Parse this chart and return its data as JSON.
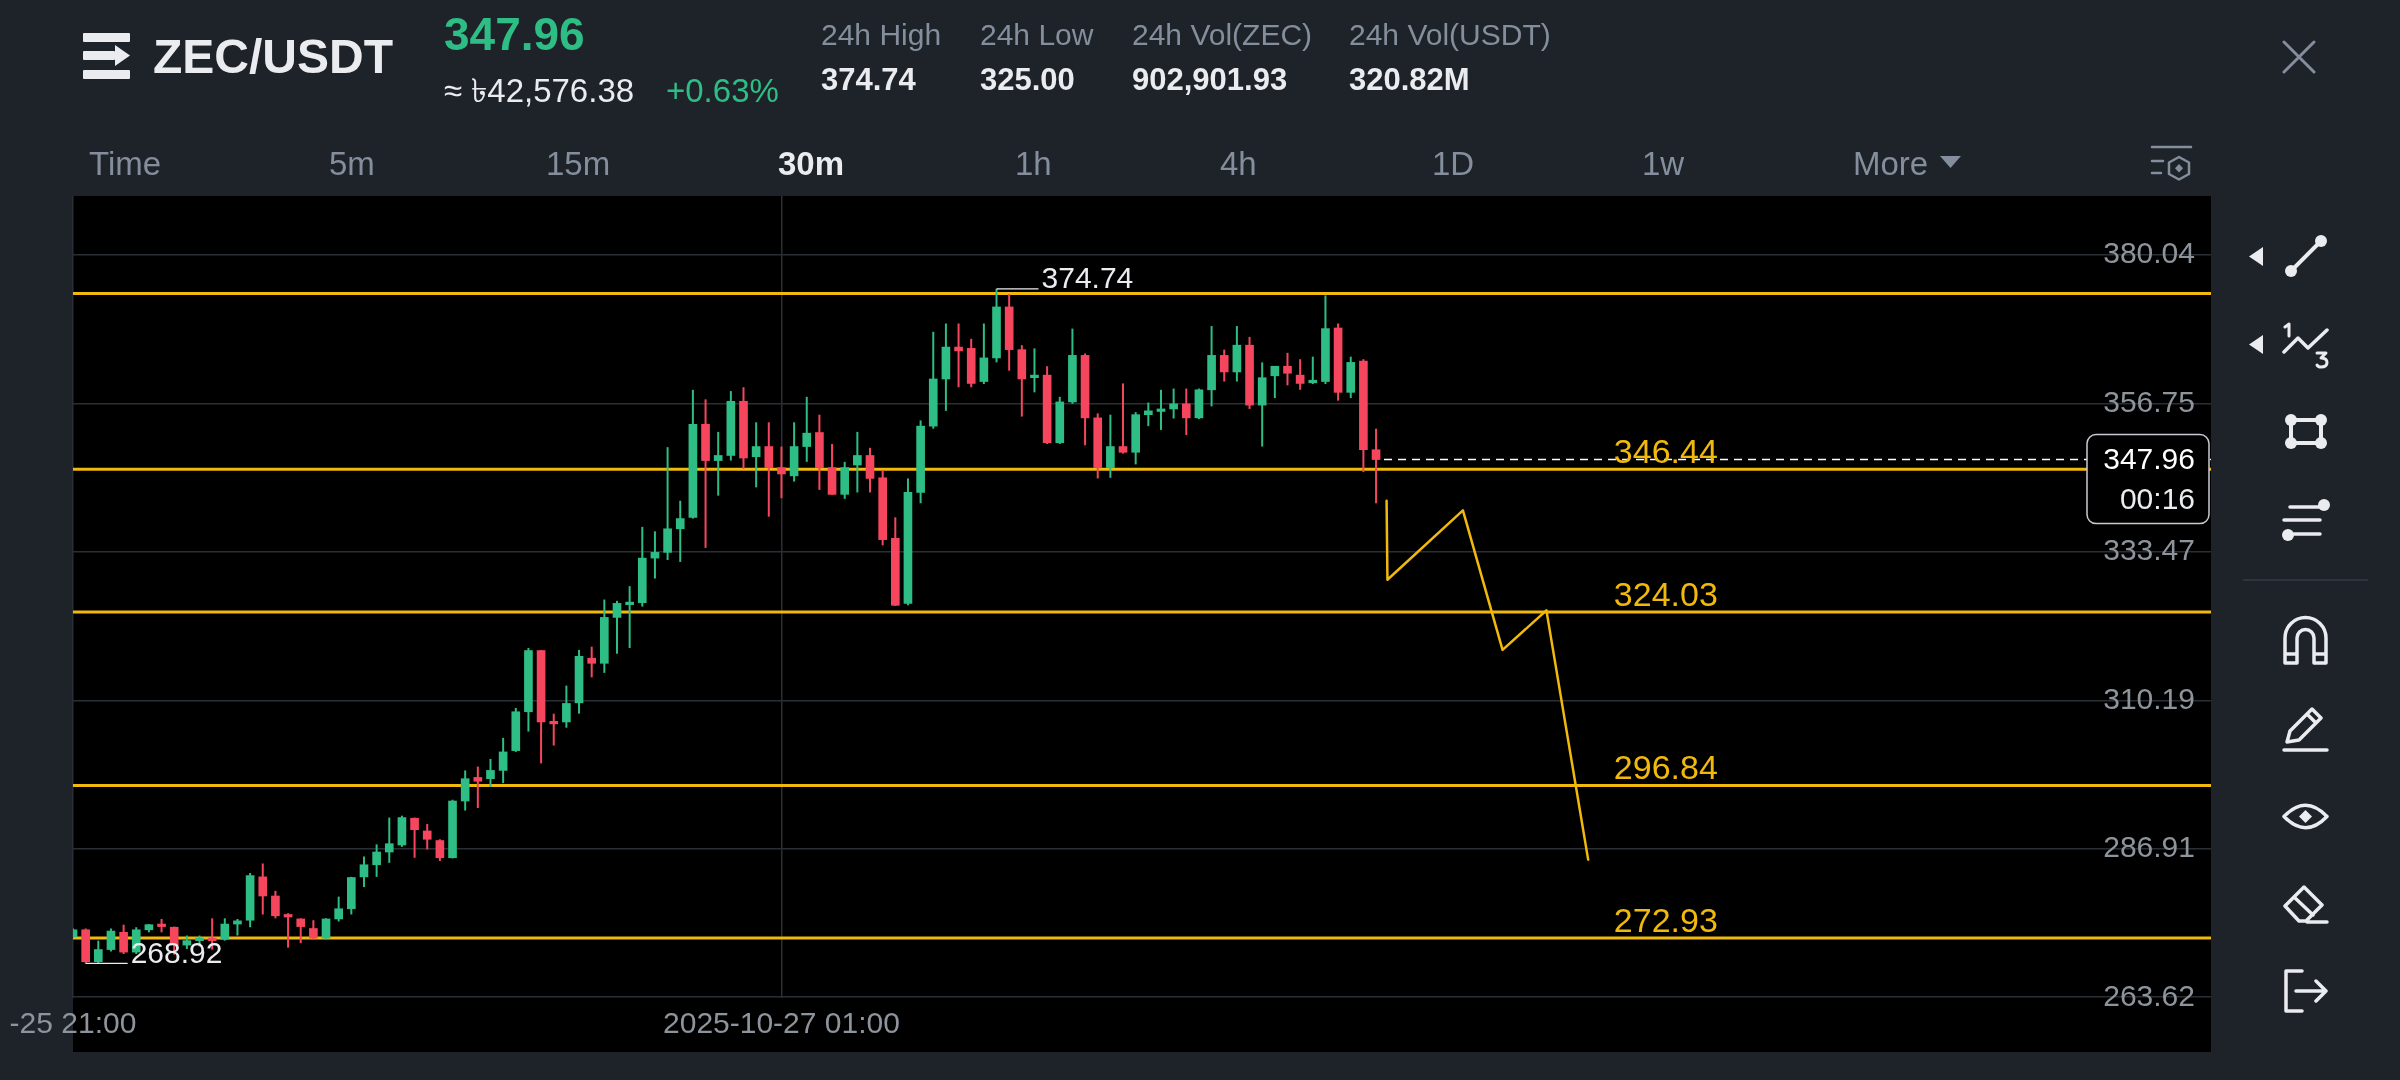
{
  "chart_data": {
    "type": "candlestick",
    "title": "ZEC/USDT",
    "x": [
      "2025-10-25T21:00",
      "2025-10-25T21:30",
      "2025-10-25T22:00",
      "2025-10-25T22:30",
      "2025-10-25T23:00",
      "2025-10-25T23:30",
      "2025-10-26T00:00",
      "2025-10-26T00:30",
      "2025-10-26T01:00",
      "2025-10-26T01:30",
      "2025-10-26T02:00",
      "2025-10-26T02:30",
      "2025-10-26T03:00",
      "2025-10-26T03:30",
      "2025-10-26T04:00",
      "2025-10-26T04:30",
      "2025-10-26T05:00",
      "2025-10-26T05:30",
      "2025-10-26T06:00",
      "2025-10-26T06:30",
      "2025-10-26T07:00",
      "2025-10-26T07:30",
      "2025-10-26T08:00",
      "2025-10-26T08:30",
      "2025-10-26T09:00",
      "2025-10-26T09:30",
      "2025-10-26T10:00",
      "2025-10-26T10:30",
      "2025-10-26T11:00",
      "2025-10-26T11:30",
      "2025-10-26T12:00",
      "2025-10-26T12:30",
      "2025-10-26T13:00",
      "2025-10-26T13:30",
      "2025-10-26T14:00",
      "2025-10-26T14:30",
      "2025-10-26T15:00",
      "2025-10-26T15:30",
      "2025-10-26T16:00",
      "2025-10-26T16:30",
      "2025-10-26T17:00",
      "2025-10-26T17:30",
      "2025-10-26T18:00",
      "2025-10-26T18:30",
      "2025-10-26T19:00",
      "2025-10-26T19:30",
      "2025-10-26T20:00",
      "2025-10-26T20:30",
      "2025-10-26T21:00",
      "2025-10-26T21:30",
      "2025-10-26T22:00",
      "2025-10-26T22:30",
      "2025-10-26T23:00",
      "2025-10-26T23:30",
      "2025-10-27T00:00",
      "2025-10-27T00:30",
      "2025-10-27T01:00",
      "2025-10-27T01:30",
      "2025-10-27T02:00",
      "2025-10-27T02:30",
      "2025-10-27T03:00",
      "2025-10-27T03:30",
      "2025-10-27T04:00",
      "2025-10-27T04:30",
      "2025-10-27T05:00",
      "2025-10-27T05:30",
      "2025-10-27T06:00",
      "2025-10-27T06:30",
      "2025-10-27T07:00",
      "2025-10-27T07:30",
      "2025-10-27T08:00",
      "2025-10-27T08:30",
      "2025-10-27T09:00",
      "2025-10-27T09:30",
      "2025-10-27T10:00",
      "2025-10-27T10:30",
      "2025-10-27T11:00",
      "2025-10-27T11:30",
      "2025-10-27T12:00",
      "2025-10-27T12:30",
      "2025-10-27T13:00",
      "2025-10-27T13:30",
      "2025-10-27T14:00",
      "2025-10-27T14:30",
      "2025-10-27T15:00",
      "2025-10-27T15:30",
      "2025-10-27T16:00",
      "2025-10-27T16:30",
      "2025-10-27T17:00",
      "2025-10-27T17:30",
      "2025-10-27T18:00",
      "2025-10-27T18:30",
      "2025-10-27T19:00",
      "2025-10-27T19:30",
      "2025-10-27T20:00",
      "2025-10-27T20:30",
      "2025-10-27T21:00",
      "2025-10-27T21:30",
      "2025-10-27T22:00",
      "2025-10-27T22:30",
      "2025-10-27T23:00",
      "2025-10-27T23:30",
      "2025-10-28T00:00",
      "2025-10-28T00:30"
    ],
    "ohlc": [
      [
        273.1,
        274.4,
        272.9,
        274.2
      ],
      [
        274.2,
        274.4,
        268.92,
        269.2
      ],
      [
        269.2,
        272.5,
        269.0,
        271.1
      ],
      [
        271.1,
        274.4,
        270.8,
        274.0
      ],
      [
        273.8,
        275.0,
        270.4,
        270.7
      ],
      [
        270.7,
        274.6,
        270.4,
        274.2
      ],
      [
        274.2,
        275.1,
        273.8,
        275.0
      ],
      [
        275.1,
        275.9,
        273.8,
        274.7
      ],
      [
        274.6,
        274.7,
        270.3,
        271.8
      ],
      [
        271.8,
        273.3,
        271.2,
        272.5
      ],
      [
        272.5,
        273.3,
        271.6,
        272.9
      ],
      [
        272.9,
        276.0,
        271.1,
        272.5
      ],
      [
        272.7,
        276.0,
        272.5,
        275.1
      ],
      [
        275.1,
        275.9,
        273.3,
        275.6
      ],
      [
        275.7,
        283.1,
        274.6,
        282.7
      ],
      [
        282.5,
        284.6,
        276.6,
        279.5
      ],
      [
        279.5,
        280.3,
        276.0,
        276.4
      ],
      [
        276.6,
        276.8,
        271.4,
        276.2
      ],
      [
        275.9,
        276.0,
        272.1,
        274.7
      ],
      [
        274.4,
        275.7,
        272.7,
        272.9
      ],
      [
        272.9,
        276.0,
        272.7,
        275.9
      ],
      [
        275.9,
        279.4,
        275.5,
        277.5
      ],
      [
        277.5,
        282.5,
        276.6,
        282.4
      ],
      [
        282.5,
        285.7,
        280.9,
        284.4
      ],
      [
        284.4,
        287.6,
        282.5,
        286.4
      ],
      [
        286.4,
        291.8,
        284.7,
        287.7
      ],
      [
        287.5,
        292.1,
        287.2,
        291.8
      ],
      [
        291.7,
        291.8,
        285.5,
        289.9
      ],
      [
        289.7,
        290.8,
        286.8,
        288.4
      ],
      [
        288.2,
        288.4,
        285.0,
        285.5
      ],
      [
        285.5,
        294.6,
        285.4,
        294.4
      ],
      [
        294.4,
        299.2,
        292.9,
        297.9
      ],
      [
        298.1,
        299.8,
        293.3,
        297.5
      ],
      [
        297.9,
        301.0,
        296.6,
        299.2
      ],
      [
        299.2,
        304.3,
        297.2,
        302.1
      ],
      [
        302.3,
        309.0,
        302.1,
        308.4
      ],
      [
        308.4,
        318.4,
        305.3,
        318.0
      ],
      [
        318.0,
        318.1,
        300.3,
        306.8
      ],
      [
        306.9,
        308.1,
        303.1,
        306.5
      ],
      [
        306.8,
        312.5,
        305.9,
        309.7
      ],
      [
        309.8,
        318.1,
        308.1,
        317.1
      ],
      [
        316.8,
        318.6,
        313.8,
        316.0
      ],
      [
        316.0,
        326.0,
        314.5,
        323.2
      ],
      [
        323.2,
        325.8,
        317.5,
        325.4
      ],
      [
        325.2,
        328.1,
        318.4,
        325.6
      ],
      [
        325.5,
        337.4,
        324.9,
        332.5
      ],
      [
        332.5,
        336.7,
        329.3,
        333.4
      ],
      [
        333.4,
        349.9,
        332.2,
        337.1
      ],
      [
        337.1,
        341.5,
        331.9,
        338.7
      ],
      [
        338.9,
        358.9,
        338.7,
        353.5
      ],
      [
        353.5,
        357.4,
        334.1,
        347.8
      ],
      [
        347.8,
        352.3,
        342.3,
        348.6
      ],
      [
        348.6,
        358.7,
        347.8,
        357.1
      ],
      [
        357.1,
        359.3,
        346.5,
        348.2
      ],
      [
        348.4,
        353.8,
        343.6,
        350.0
      ],
      [
        350.0,
        353.8,
        339.0,
        346.7
      ],
      [
        346.7,
        350.0,
        341.9,
        345.7
      ],
      [
        345.4,
        353.8,
        344.5,
        350.0
      ],
      [
        350.0,
        357.8,
        347.6,
        352.1
      ],
      [
        352.2,
        355.0,
        343.2,
        346.7
      ],
      [
        346.7,
        350.4,
        342.4,
        342.5
      ],
      [
        342.5,
        347.6,
        341.8,
        346.7
      ],
      [
        347.1,
        352.3,
        342.8,
        348.6
      ],
      [
        348.6,
        349.8,
        342.8,
        345.0
      ],
      [
        345.1,
        346.3,
        334.5,
        335.4
      ],
      [
        335.6,
        338.9,
        325.0,
        325.1
      ],
      [
        325.4,
        345.0,
        325.1,
        342.8
      ],
      [
        342.8,
        354.1,
        341.1,
        353.2
      ],
      [
        353.2,
        368.0,
        352.8,
        360.6
      ],
      [
        360.6,
        369.3,
        355.6,
        365.6
      ],
      [
        365.6,
        369.3,
        359.3,
        365.0
      ],
      [
        365.4,
        366.9,
        359.3,
        359.9
      ],
      [
        360.2,
        369.3,
        359.8,
        363.9
      ],
      [
        363.9,
        374.74,
        363.2,
        371.9
      ],
      [
        371.9,
        373.9,
        361.9,
        365.2
      ],
      [
        365.2,
        365.9,
        354.7,
        360.6
      ],
      [
        360.8,
        365.4,
        358.5,
        361.2
      ],
      [
        361.2,
        362.6,
        350.4,
        350.6
      ],
      [
        350.6,
        357.8,
        350.4,
        357.0
      ],
      [
        357.0,
        368.5,
        356.7,
        364.3
      ],
      [
        364.3,
        364.6,
        350.2,
        354.5
      ],
      [
        354.5,
        355.2,
        345.0,
        346.7
      ],
      [
        346.7,
        355.0,
        345.1,
        350.0
      ],
      [
        350.0,
        359.9,
        348.9,
        349.1
      ],
      [
        349.1,
        355.4,
        347.2,
        355.0
      ],
      [
        355.0,
        356.9,
        353.2,
        355.6
      ],
      [
        355.5,
        358.9,
        352.6,
        355.9
      ],
      [
        355.9,
        359.1,
        354.4,
        356.7
      ],
      [
        356.7,
        359.1,
        351.8,
        354.5
      ],
      [
        354.5,
        359.1,
        354.3,
        358.9
      ],
      [
        358.9,
        368.9,
        356.3,
        364.3
      ],
      [
        364.3,
        365.2,
        360.2,
        361.7
      ],
      [
        361.7,
        368.9,
        360.2,
        365.9
      ],
      [
        365.9,
        367.2,
        355.9,
        356.5
      ],
      [
        356.5,
        363.2,
        350.0,
        360.8
      ],
      [
        361.1,
        362.6,
        357.6,
        362.6
      ],
      [
        362.6,
        364.7,
        359.6,
        361.5
      ],
      [
        361.2,
        363.7,
        358.9,
        359.9
      ],
      [
        360.0,
        364.1,
        359.8,
        360.4
      ],
      [
        360.2,
        373.7,
        359.8,
        368.5
      ],
      [
        368.6,
        369.3,
        357.2,
        358.5
      ],
      [
        358.5,
        364.1,
        357.6,
        363.2
      ],
      [
        363.4,
        363.7,
        346.0,
        349.5
      ],
      [
        349.5,
        352.8,
        341.1,
        347.96
      ]
    ],
    "colors": [
      "#2ebd85",
      "#f6465d",
      "#2ebd85",
      "#2ebd85",
      "#f6465d",
      "#2ebd85",
      "#2ebd85",
      "#f6465d",
      "#f6465d",
      "#2ebd85",
      "#2ebd85",
      "#f6465d",
      "#2ebd85",
      "#2ebd85",
      "#2ebd85",
      "#f6465d",
      "#f6465d",
      "#f6465d",
      "#f6465d",
      "#f6465d",
      "#2ebd85",
      "#2ebd85",
      "#2ebd85",
      "#2ebd85",
      "#2ebd85",
      "#2ebd85",
      "#2ebd85",
      "#f6465d",
      "#f6465d",
      "#f6465d",
      "#2ebd85",
      "#2ebd85",
      "#f6465d",
      "#2ebd85",
      "#2ebd85",
      "#2ebd85",
      "#2ebd85",
      "#f6465d",
      "#f6465d",
      "#2ebd85",
      "#2ebd85",
      "#f6465d",
      "#2ebd85",
      "#2ebd85",
      "#2ebd85",
      "#2ebd85",
      "#2ebd85",
      "#2ebd85",
      "#2ebd85",
      "#2ebd85",
      "#f6465d",
      "#2ebd85",
      "#2ebd85",
      "#f6465d",
      "#2ebd85",
      "#f6465d",
      "#f6465d",
      "#2ebd85",
      "#2ebd85",
      "#f6465d",
      "#f6465d",
      "#2ebd85",
      "#2ebd85",
      "#f6465d",
      "#f6465d",
      "#f6465d",
      "#2ebd85",
      "#2ebd85",
      "#2ebd85",
      "#2ebd85",
      "#f6465d",
      "#f6465d",
      "#2ebd85",
      "#2ebd85",
      "#f6465d",
      "#f6465d",
      "#2ebd85",
      "#f6465d",
      "#2ebd85",
      "#2ebd85",
      "#f6465d",
      "#f6465d",
      "#2ebd85",
      "#f6465d",
      "#2ebd85",
      "#2ebd85",
      "#2ebd85",
      "#2ebd85",
      "#f6465d",
      "#2ebd85",
      "#2ebd85",
      "#f6465d",
      "#2ebd85",
      "#f6465d",
      "#2ebd85",
      "#2ebd85",
      "#f6465d",
      "#f6465d",
      "#2ebd85",
      "#2ebd85",
      "#f6465d",
      "#2ebd85",
      "#f6465d",
      "#f6465d"
    ],
    "series": [
      {
        "type": "line",
        "x": [
          "2025-10-28T00:55",
          "2025-10-28T00:57",
          "2025-10-28T03:56",
          "2025-10-28T05:30",
          "2025-10-28T07:14",
          "2025-10-28T08:53"
        ],
        "values": [
          341.5,
          329.1,
          340.0,
          318.1,
          324.3,
          285.2
        ],
        "color": "#f0b90b"
      }
    ],
    "xlim": [
      "2025-10-25T21:00",
      "2025-10-29T09:30"
    ],
    "xticks": [
      {
        "value": "2025-10-25T21:00",
        "label": "-25 21:00"
      },
      {
        "value": "2025-10-27T01:00",
        "label": "2025-10-27 01:00"
      }
    ],
    "ylim": [
      263.5,
      389.3
    ],
    "yticks": [
      263.62,
      286.91,
      310.19,
      333.47,
      356.75,
      380.04
    ],
    "grid": true,
    "ref_lines": [
      {
        "axis": "y",
        "value": 374,
        "color": "#f0b90b"
      },
      {
        "axis": "y",
        "value": 346.44,
        "label": "346.44",
        "color": "#f0b90b"
      },
      {
        "axis": "y",
        "value": 324.03,
        "label": "324.03",
        "color": "#f0b90b"
      },
      {
        "axis": "y",
        "value": 296.84,
        "label": "296.84",
        "color": "#f0b90b"
      },
      {
        "axis": "y",
        "value": 272.93,
        "label": "272.93",
        "color": "#f0b90b"
      },
      {
        "axis": "y",
        "value": 347.96,
        "label": "347.96",
        "color": "#ffffff",
        "line_style": "dashed"
      }
    ],
    "annotations": [
      "347.96",
      "≈ ৳42,576.38",
      "+0.63%",
      "24h High",
      "374.74",
      "24h Low",
      "325.00",
      "24h Vol(ZEC)",
      "902,901.93",
      "24h Vol(USDT)",
      "320.82M",
      "Time",
      "5m",
      "15m",
      "30m",
      "1h",
      "4h",
      "1D",
      "1w",
      "More",
      {
        "text": "00:16",
        "y": 347.96
      },
      {
        "text": "374.74",
        "x": "2025-10-27T09:30",
        "y": 374.74
      },
      {
        "text": "268.92",
        "x": "2025-10-25T21:30",
        "y": 268.92
      }
    ]
  }
}
